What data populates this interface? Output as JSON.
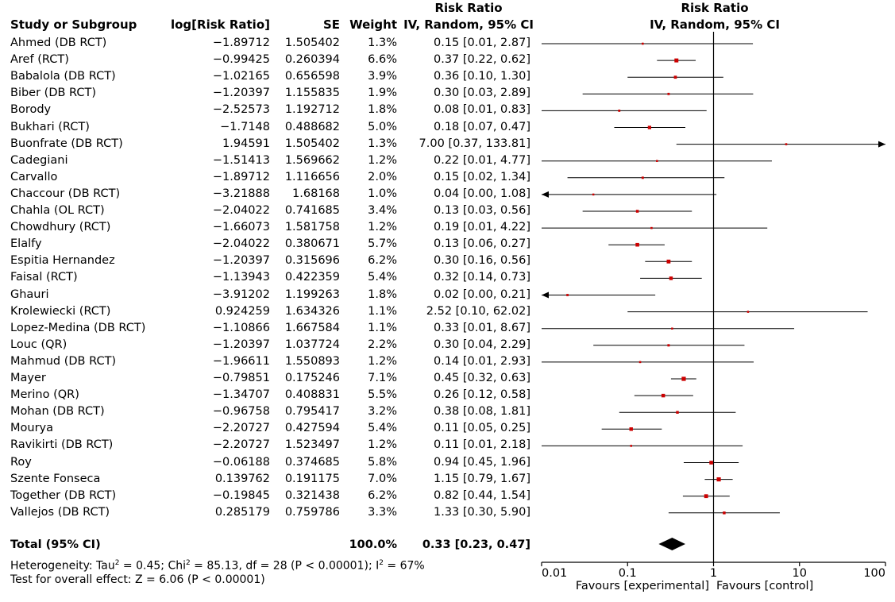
{
  "headers": {
    "study": "Study or Subgroup",
    "logrr": "log[Risk Ratio]",
    "se": "SE",
    "weight": "Weight",
    "rr_title": "Risk Ratio",
    "rr_sub": "IV, Random, 95% CI",
    "plot_title": "Risk Ratio",
    "plot_sub": "IV, Random, 95% CI"
  },
  "total": {
    "label": "Total (95% CI)",
    "weight": "100.0%",
    "ci": "0.33 [0.23, 0.47]"
  },
  "heterogeneity": {
    "prefix": "Heterogeneity: Tau",
    "tau_sup": "2",
    "mid1": " = 0.45; Chi",
    "chi_sup": "2",
    "mid2": " = 85.13, df = 28 (P < 0.00001); I",
    "i_sup": "2",
    "suffix": " = 67%"
  },
  "overall": "Test for overall effect: Z = 6.06 (P < 0.00001)",
  "favours": {
    "left": "Favours [experimental]",
    "right": "Favours [control]"
  },
  "chart_data": {
    "type": "forest",
    "xscale": "log",
    "xlim": [
      0.01,
      100
    ],
    "xticks": [
      "0.01",
      "0.1",
      "1",
      "10",
      "100"
    ],
    "xtick_values": [
      0.01,
      0.1,
      1,
      10,
      100
    ],
    "studies": [
      {
        "name": "Ahmed (DB RCT)",
        "logrr": "−1.89712",
        "se": "1.505402",
        "weight": "1.3%",
        "ci": "0.15 [0.01, 2.87]",
        "rr": 0.15,
        "lo": 0.01,
        "hi": 2.87
      },
      {
        "name": "Aref (RCT)",
        "logrr": "−0.99425",
        "se": "0.260394",
        "weight": "6.6%",
        "ci": "0.37 [0.22, 0.62]",
        "rr": 0.37,
        "lo": 0.22,
        "hi": 0.62
      },
      {
        "name": "Babalola (DB RCT)",
        "logrr": "−1.02165",
        "se": "0.656598",
        "weight": "3.9%",
        "ci": "0.36 [0.10, 1.30]",
        "rr": 0.36,
        "lo": 0.1,
        "hi": 1.3
      },
      {
        "name": "Biber (DB RCT)",
        "logrr": "−1.20397",
        "se": "1.155835",
        "weight": "1.9%",
        "ci": "0.30 [0.03, 2.89]",
        "rr": 0.3,
        "lo": 0.03,
        "hi": 2.89
      },
      {
        "name": "Borody",
        "logrr": "−2.52573",
        "se": "1.192712",
        "weight": "1.8%",
        "ci": "0.08 [0.01, 0.83]",
        "rr": 0.08,
        "lo": 0.01,
        "hi": 0.83
      },
      {
        "name": "Bukhari (RCT)",
        "logrr": "−1.7148",
        "se": "0.488682",
        "weight": "5.0%",
        "ci": "0.18 [0.07, 0.47]",
        "rr": 0.18,
        "lo": 0.07,
        "hi": 0.47
      },
      {
        "name": "Buonfrate (DB RCT)",
        "logrr": "1.94591",
        "se": "1.505402",
        "weight": "1.3%",
        "ci": "7.00 [0.37, 133.81]",
        "rr": 7.0,
        "lo": 0.37,
        "hi": 133.81
      },
      {
        "name": "Cadegiani",
        "logrr": "−1.51413",
        "se": "1.569662",
        "weight": "1.2%",
        "ci": "0.22 [0.01, 4.77]",
        "rr": 0.22,
        "lo": 0.01,
        "hi": 4.77
      },
      {
        "name": "Carvallo",
        "logrr": "−1.89712",
        "se": "1.116656",
        "weight": "2.0%",
        "ci": "0.15 [0.02, 1.34]",
        "rr": 0.15,
        "lo": 0.02,
        "hi": 1.34
      },
      {
        "name": "Chaccour (DB RCT)",
        "logrr": "−3.21888",
        "se": "1.68168",
        "weight": "1.0%",
        "ci": "0.04 [0.00, 1.08]",
        "rr": 0.04,
        "lo": 0.0,
        "hi": 1.08
      },
      {
        "name": "Chahla (OL RCT)",
        "logrr": "−2.04022",
        "se": "0.741685",
        "weight": "3.4%",
        "ci": "0.13 [0.03, 0.56]",
        "rr": 0.13,
        "lo": 0.03,
        "hi": 0.56
      },
      {
        "name": "Chowdhury (RCT)",
        "logrr": "−1.66073",
        "se": "1.581758",
        "weight": "1.2%",
        "ci": "0.19 [0.01, 4.22]",
        "rr": 0.19,
        "lo": 0.01,
        "hi": 4.22
      },
      {
        "name": "Elalfy",
        "logrr": "−2.04022",
        "se": "0.380671",
        "weight": "5.7%",
        "ci": "0.13 [0.06, 0.27]",
        "rr": 0.13,
        "lo": 0.06,
        "hi": 0.27
      },
      {
        "name": "Espitia Hernandez",
        "logrr": "−1.20397",
        "se": "0.315696",
        "weight": "6.2%",
        "ci": "0.30 [0.16, 0.56]",
        "rr": 0.3,
        "lo": 0.16,
        "hi": 0.56
      },
      {
        "name": "Faisal (RCT)",
        "logrr": "−1.13943",
        "se": "0.422359",
        "weight": "5.4%",
        "ci": "0.32 [0.14, 0.73]",
        "rr": 0.32,
        "lo": 0.14,
        "hi": 0.73
      },
      {
        "name": "Ghauri",
        "logrr": "−3.91202",
        "se": "1.199263",
        "weight": "1.8%",
        "ci": "0.02 [0.00, 0.21]",
        "rr": 0.02,
        "lo": 0.0,
        "hi": 0.21
      },
      {
        "name": "Krolewiecki (RCT)",
        "logrr": "0.924259",
        "se": "1.634326",
        "weight": "1.1%",
        "ci": "2.52 [0.10, 62.02]",
        "rr": 2.52,
        "lo": 0.1,
        "hi": 62.02
      },
      {
        "name": "Lopez-Medina (DB RCT)",
        "logrr": "−1.10866",
        "se": "1.667584",
        "weight": "1.1%",
        "ci": "0.33 [0.01, 8.67]",
        "rr": 0.33,
        "lo": 0.01,
        "hi": 8.67
      },
      {
        "name": "Louc (QR)",
        "logrr": "−1.20397",
        "se": "1.037724",
        "weight": "2.2%",
        "ci": "0.30 [0.04, 2.29]",
        "rr": 0.3,
        "lo": 0.04,
        "hi": 2.29
      },
      {
        "name": "Mahmud (DB RCT)",
        "logrr": "−1.96611",
        "se": "1.550893",
        "weight": "1.2%",
        "ci": "0.14 [0.01, 2.93]",
        "rr": 0.14,
        "lo": 0.01,
        "hi": 2.93
      },
      {
        "name": "Mayer",
        "logrr": "−0.79851",
        "se": "0.175246",
        "weight": "7.1%",
        "ci": "0.45 [0.32, 0.63]",
        "rr": 0.45,
        "lo": 0.32,
        "hi": 0.63
      },
      {
        "name": "Merino (QR)",
        "logrr": "−1.34707",
        "se": "0.408831",
        "weight": "5.5%",
        "ci": "0.26 [0.12, 0.58]",
        "rr": 0.26,
        "lo": 0.12,
        "hi": 0.58
      },
      {
        "name": "Mohan (DB RCT)",
        "logrr": "−0.96758",
        "se": "0.795417",
        "weight": "3.2%",
        "ci": "0.38 [0.08, 1.81]",
        "rr": 0.38,
        "lo": 0.08,
        "hi": 1.81
      },
      {
        "name": "Mourya",
        "logrr": "−2.20727",
        "se": "0.427594",
        "weight": "5.4%",
        "ci": "0.11 [0.05, 0.25]",
        "rr": 0.11,
        "lo": 0.05,
        "hi": 0.25
      },
      {
        "name": "Ravikirti (DB RCT)",
        "logrr": "−2.20727",
        "se": "1.523497",
        "weight": "1.2%",
        "ci": "0.11 [0.01, 2.18]",
        "rr": 0.11,
        "lo": 0.01,
        "hi": 2.18
      },
      {
        "name": "Roy",
        "logrr": "−0.06188",
        "se": "0.374685",
        "weight": "5.8%",
        "ci": "0.94 [0.45, 1.96]",
        "rr": 0.94,
        "lo": 0.45,
        "hi": 1.96
      },
      {
        "name": "Szente Fonseca",
        "logrr": "0.139762",
        "se": "0.191175",
        "weight": "7.0%",
        "ci": "1.15 [0.79, 1.67]",
        "rr": 1.15,
        "lo": 0.79,
        "hi": 1.67
      },
      {
        "name": "Together (DB RCT)",
        "logrr": "−0.19845",
        "se": "0.321438",
        "weight": "6.2%",
        "ci": "0.82 [0.44, 1.54]",
        "rr": 0.82,
        "lo": 0.44,
        "hi": 1.54
      },
      {
        "name": "Vallejos (DB RCT)",
        "logrr": "0.285179",
        "se": "0.759786",
        "weight": "3.3%",
        "ci": "1.33 [0.30, 5.90]",
        "rr": 1.33,
        "lo": 0.3,
        "hi": 5.9
      }
    ],
    "pooled": {
      "rr": 0.33,
      "lo": 0.23,
      "hi": 0.47
    },
    "marker_color": "#cc0000",
    "line_color": "#000000"
  }
}
